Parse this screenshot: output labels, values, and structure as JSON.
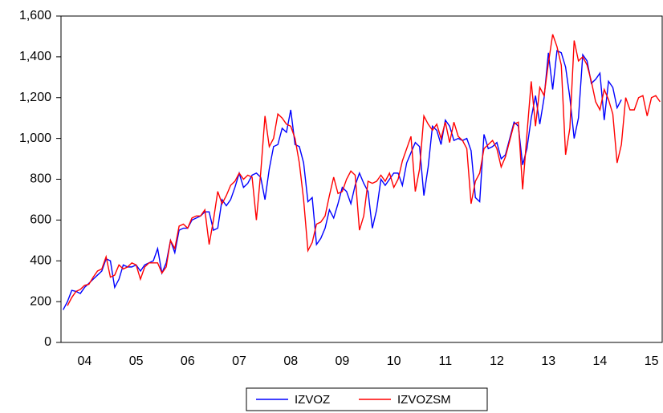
{
  "chart_data": {
    "type": "line",
    "categories": [
      null,
      null,
      null,
      null,
      null,
      "04",
      null,
      null,
      null,
      null,
      null,
      null,
      null,
      null,
      null,
      null,
      null,
      "05",
      null,
      null,
      null,
      null,
      null,
      null,
      null,
      null,
      null,
      null,
      null,
      "06",
      null,
      null,
      null,
      null,
      null,
      null,
      null,
      null,
      null,
      null,
      null,
      "07",
      null,
      null,
      null,
      null,
      null,
      null,
      null,
      null,
      null,
      null,
      null,
      "08",
      null,
      null,
      null,
      null,
      null,
      null,
      null,
      null,
      null,
      null,
      null,
      "09",
      null,
      null,
      null,
      null,
      null,
      null,
      null,
      null,
      null,
      null,
      null,
      "10",
      null,
      null,
      null,
      null,
      null,
      null,
      null,
      null,
      null,
      null,
      null,
      "11",
      null,
      null,
      null,
      null,
      null,
      null,
      null,
      null,
      null,
      null,
      null,
      "12",
      null,
      null,
      null,
      null,
      null,
      null,
      null,
      null,
      null,
      null,
      null,
      "13",
      null,
      null,
      null,
      null,
      null,
      null,
      null,
      null,
      null,
      null,
      null,
      "14",
      null,
      null,
      null,
      null,
      null,
      null,
      null,
      null,
      null,
      null,
      null,
      "15",
      null,
      null
    ],
    "series": [
      {
        "name": "IZVOZ",
        "color": "#0000ff",
        "values": [
          160,
          200,
          255,
          250,
          240,
          270,
          290,
          310,
          330,
          350,
          410,
          400,
          270,
          310,
          380,
          370,
          370,
          380,
          350,
          380,
          390,
          400,
          460,
          340,
          390,
          500,
          440,
          550,
          560,
          560,
          600,
          610,
          620,
          640,
          640,
          550,
          560,
          700,
          670,
          700,
          760,
          830,
          760,
          780,
          820,
          830,
          810,
          700,
          850,
          960,
          970,
          1050,
          1030,
          1140,
          970,
          960,
          880,
          690,
          710,
          480,
          510,
          560,
          650,
          610,
          680,
          760,
          740,
          680,
          770,
          830,
          780,
          740,
          560,
          650,
          800,
          770,
          800,
          830,
          830,
          770,
          880,
          930,
          980,
          960,
          720,
          860,
          1060,
          1040,
          970,
          1090,
          1060,
          990,
          1000,
          990,
          1000,
          940,
          710,
          690,
          1020,
          950,
          960,
          980,
          900,
          920,
          1000,
          1080,
          1060,
          870,
          950,
          1100,
          1210,
          1070,
          1200,
          1420,
          1240,
          1430,
          1420,
          1350,
          1200,
          1000,
          1100,
          1410,
          1380,
          1270,
          1290,
          1320,
          1090,
          1280,
          1250,
          1150,
          1190,
          null,
          null,
          null,
          null,
          null,
          null,
          null,
          null,
          null
        ]
      },
      {
        "name": "IZVOZSM",
        "color": "#ff0000",
        "values": [
          null,
          180,
          220,
          250,
          260,
          280,
          285,
          320,
          350,
          360,
          420,
          320,
          330,
          380,
          360,
          370,
          390,
          380,
          310,
          370,
          390,
          390,
          390,
          340,
          370,
          500,
          460,
          570,
          580,
          560,
          610,
          620,
          620,
          650,
          480,
          600,
          740,
          680,
          720,
          770,
          790,
          830,
          800,
          820,
          810,
          600,
          830,
          1110,
          960,
          1000,
          1120,
          1100,
          1070,
          1060,
          1000,
          880,
          700,
          450,
          490,
          580,
          590,
          620,
          720,
          810,
          730,
          740,
          800,
          840,
          820,
          550,
          620,
          790,
          780,
          790,
          820,
          790,
          830,
          760,
          800,
          890,
          950,
          1010,
          740,
          850,
          1110,
          1070,
          1040,
          1070,
          1000,
          1080,
          980,
          1080,
          1010,
          990,
          950,
          680,
          790,
          830,
          950,
          970,
          990,
          950,
          860,
          910,
          990,
          1070,
          1080,
          750,
          1020,
          1280,
          1060,
          1250,
          1210,
          1370,
          1510,
          1450,
          1360,
          920,
          1050,
          1480,
          1380,
          1400,
          1360,
          1280,
          1180,
          1140,
          1240,
          1190,
          1120,
          880,
          970,
          1200,
          1140,
          1140,
          1200,
          1210,
          1110,
          1200,
          1210,
          1180
        ]
      }
    ],
    "ylim": [
      0,
      1600
    ],
    "yticks": [
      0,
      200,
      400,
      600,
      800,
      {
        "value": 1000,
        "label": "1,000"
      },
      {
        "value": 1200,
        "label": "1,200"
      },
      {
        "value": 1400,
        "label": "1,400"
      },
      {
        "value": 1600,
        "label": "1,600"
      }
    ],
    "legend": "bottom",
    "grid": false
  }
}
